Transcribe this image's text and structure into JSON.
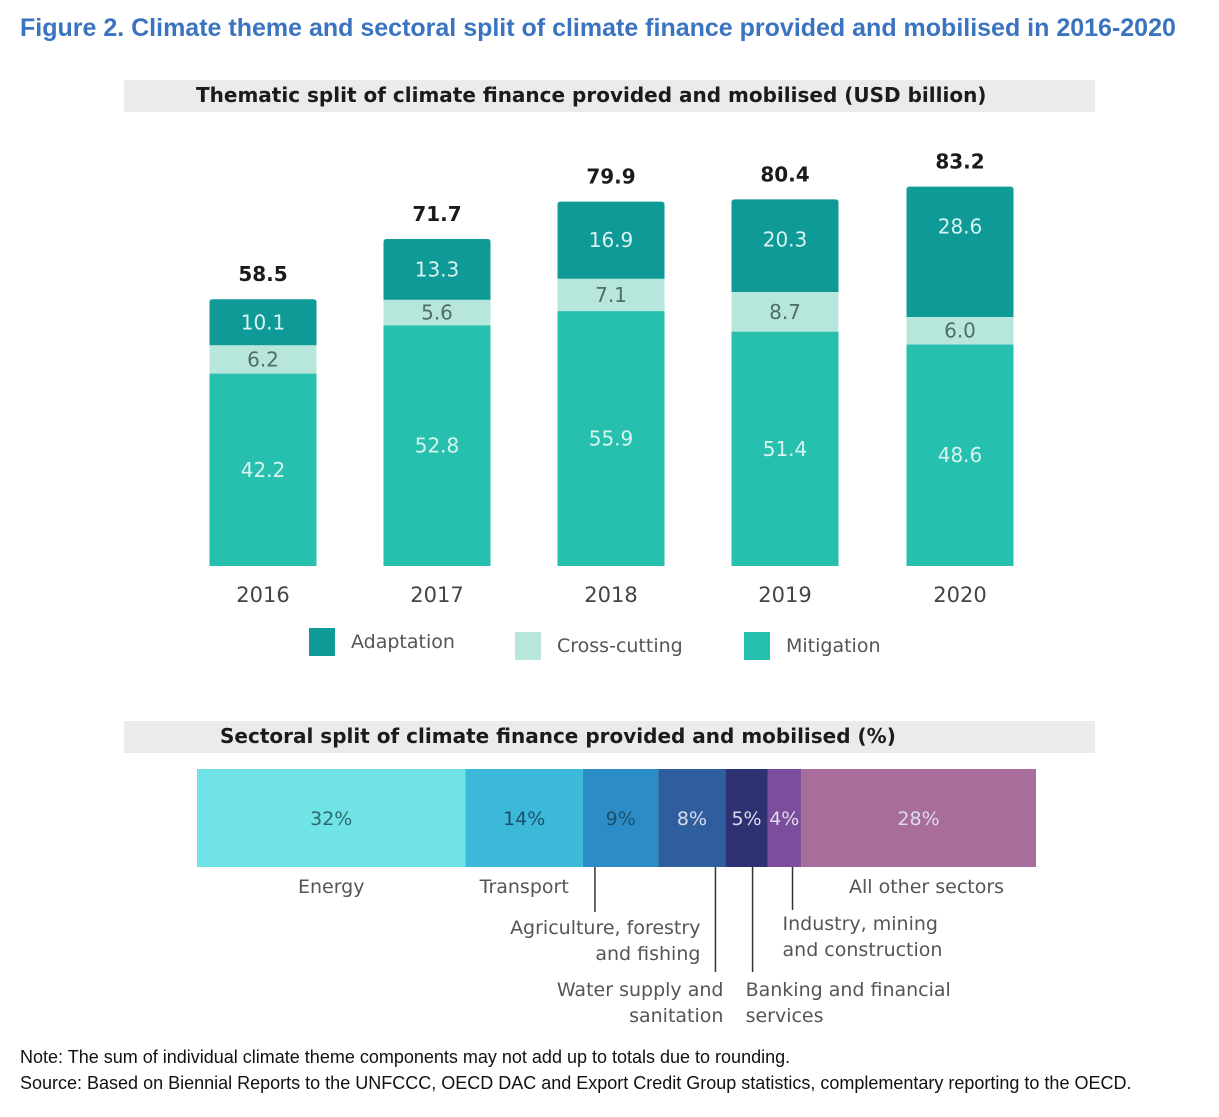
{
  "figure_title": "Figure 2. Climate theme and sectoral split of climate finance provided and mobilised in 2016-2020",
  "colors": {
    "adaptation": "#0f9a98",
    "cross_cutting": "#b7e6dd",
    "mitigation": "#27bfae",
    "title_blue": "#3a74c0"
  },
  "chart_data": [
    {
      "type": "bar",
      "stacked": true,
      "title": "Thematic split of climate finance provided and mobilised (USD billion)",
      "categories": [
        "2016",
        "2017",
        "2018",
        "2019",
        "2020"
      ],
      "series": [
        {
          "name": "Mitigation",
          "values": [
            42.2,
            52.8,
            55.9,
            51.4,
            48.6
          ],
          "labels": [
            "42.2",
            "52.8",
            "55.9",
            "51.4",
            "48.6"
          ]
        },
        {
          "name": "Cross-cutting",
          "values": [
            6.2,
            5.6,
            7.1,
            8.7,
            6.0
          ],
          "labels": [
            "6.2",
            "5.6",
            "7.1",
            "8.7",
            "6.0"
          ]
        },
        {
          "name": "Adaptation",
          "values": [
            10.1,
            13.3,
            16.9,
            20.3,
            28.6
          ],
          "labels": [
            "10.1",
            "13.3",
            "16.9",
            "20.3",
            "28.6"
          ]
        }
      ],
      "totals": [
        "58.5",
        "71.7",
        "79.9",
        "80.4",
        "83.2"
      ],
      "legend": [
        "Adaptation",
        "Cross-cutting",
        "Mitigation"
      ],
      "xlabel": "",
      "ylabel": "",
      "grid": false
    },
    {
      "type": "bar",
      "stacked": true,
      "orientation": "horizontal",
      "title": "Sectoral split of climate finance provided and mobilised (%)",
      "segments": [
        {
          "name": "Energy",
          "value": 32,
          "label": "32%",
          "color": "#70e3e6"
        },
        {
          "name": "Transport",
          "value": 14,
          "label": "14%",
          "color": "#3cb9d8"
        },
        {
          "name": "Agriculture, forestry and fishing",
          "value": 9,
          "label": "9%",
          "color": "#2c8cc7"
        },
        {
          "name": "Water supply and sanitation",
          "value": 8,
          "label": "8%",
          "color": "#2e5e9e"
        },
        {
          "name": "Banking and financial services",
          "value": 5,
          "label": "5%",
          "color": "#2e3172"
        },
        {
          "name": "Industry, mining and construction",
          "value": 4,
          "label": "4%",
          "color": "#7a4e9c"
        },
        {
          "name": "All other sectors",
          "value": 28,
          "label": "28%",
          "color": "#a86d9b"
        }
      ],
      "category_labels": {
        "energy": "Energy",
        "transport": "Transport",
        "agriculture": [
          "Agriculture, forestry",
          "and fishing"
        ],
        "water": [
          "Water supply and",
          "sanitation"
        ],
        "banking": [
          "Banking and financial",
          "services"
        ],
        "industry": [
          "Industry, mining",
          "and construction"
        ],
        "other": "All other sectors"
      }
    }
  ],
  "notes": {
    "note": "Note: The sum of individual climate theme components may not add up to totals due to rounding.",
    "source": "Source: Based on Biennial Reports to the UNFCCC, OECD DAC and Export Credit Group statistics, complementary reporting to the OECD."
  }
}
